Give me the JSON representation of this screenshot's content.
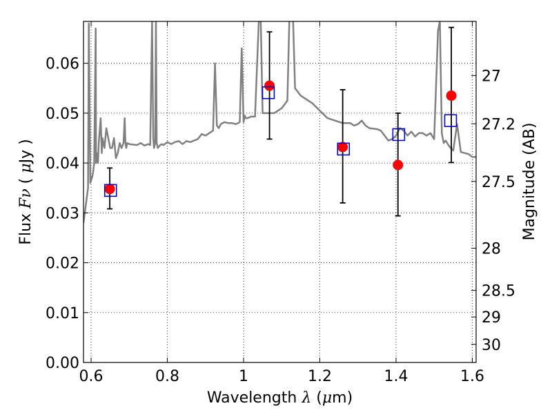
{
  "chart_data": {
    "type": "scatter",
    "title": "",
    "xlabel": "Wavelength  λ (μm)",
    "ylabel": "Flux  Fν  ( μJy )",
    "y2label": "Magnitude (AB)",
    "xlim": [
      0.58,
      1.61
    ],
    "ylim": [
      0.0,
      0.0684
    ],
    "grid": true,
    "xticks": [
      0.6,
      0.8,
      1.0,
      1.2,
      1.4,
      1.6
    ],
    "xtick_labels": [
      "0.6",
      "0.8",
      "1",
      "1.2",
      "1.4",
      "1.6"
    ],
    "yticks": [
      0.0,
      0.01,
      0.02,
      0.03,
      0.04,
      0.05,
      0.06
    ],
    "ytick_labels": [
      "0.00",
      "0.01",
      "0.02",
      "0.03",
      "0.04",
      "0.05",
      "0.06"
    ],
    "y2ticks": [
      27,
      27.2,
      27.5,
      28,
      28.5,
      29,
      30
    ],
    "y2tick_labels": [
      "27",
      "27.2",
      "27.5",
      "28",
      "28.5",
      "29",
      "30"
    ],
    "colors": {
      "spectrum": "#808080",
      "observed": "#ff0000",
      "model": "#0000cc",
      "errorbar": "#000000",
      "grid": "#000000"
    },
    "series": [
      {
        "kind": "line",
        "x": [
          0.58,
          0.592,
          0.594,
          0.598,
          0.602,
          0.605,
          0.608,
          0.612,
          0.613,
          0.615,
          0.618,
          0.62,
          0.625,
          0.628,
          0.63,
          0.635,
          0.64,
          0.645,
          0.65,
          0.655,
          0.66,
          0.665,
          0.67,
          0.675,
          0.68,
          0.685,
          0.688,
          0.69,
          0.692,
          0.695,
          0.7,
          0.71,
          0.72,
          0.73,
          0.74,
          0.75,
          0.755,
          0.76,
          0.763,
          0.765,
          0.768,
          0.77,
          0.772,
          0.775,
          0.78,
          0.785,
          0.79,
          0.8,
          0.81,
          0.82,
          0.83,
          0.84,
          0.85,
          0.86,
          0.87,
          0.88,
          0.89,
          0.9,
          0.91,
          0.92,
          0.925,
          0.93,
          0.935,
          0.94,
          0.95,
          0.96,
          0.97,
          0.98,
          0.99,
          0.995,
          1.0,
          1.003,
          1.006,
          1.01,
          1.02,
          1.03,
          1.04,
          1.045,
          1.05,
          1.06,
          1.08,
          1.1,
          1.115,
          1.12,
          1.125,
          1.13,
          1.135,
          1.15,
          1.18,
          1.2,
          1.22,
          1.24,
          1.26,
          1.28,
          1.29,
          1.3,
          1.31,
          1.32,
          1.33,
          1.35,
          1.36,
          1.37,
          1.38,
          1.39,
          1.4,
          1.41,
          1.42,
          1.43,
          1.44,
          1.45,
          1.46,
          1.47,
          1.48,
          1.49,
          1.5,
          1.51,
          1.515,
          1.52,
          1.525,
          1.53,
          1.54,
          1.55,
          1.56,
          1.57,
          1.58,
          1.59,
          1.6,
          1.61
        ],
        "y": [
          0.028,
          0.035,
          0.068,
          0.036,
          0.037,
          0.038,
          0.04,
          0.067,
          0.04,
          0.042,
          0.04,
          0.044,
          0.049,
          0.042,
          0.045,
          0.043,
          0.047,
          0.045,
          0.043,
          0.043,
          0.045,
          0.041,
          0.042,
          0.044,
          0.043,
          0.044,
          0.049,
          0.044,
          0.043,
          0.044,
          0.0438,
          0.0437,
          0.0436,
          0.044,
          0.0435,
          0.0438,
          0.0436,
          0.0685,
          0.045,
          0.043,
          0.044,
          0.0685,
          0.044,
          0.043,
          0.0435,
          0.0438,
          0.0436,
          0.0442,
          0.0438,
          0.0442,
          0.0444,
          0.0438,
          0.0444,
          0.0442,
          0.0445,
          0.0448,
          0.0458,
          0.0455,
          0.046,
          0.0465,
          0.06,
          0.0475,
          0.047,
          0.0478,
          0.0482,
          0.048,
          0.048,
          0.0478,
          0.0482,
          0.063,
          0.0482,
          0.0495,
          0.049,
          0.049,
          0.0493,
          0.0493,
          0.0685,
          0.0685,
          0.05,
          0.05,
          0.05,
          0.051,
          0.0525,
          0.0685,
          0.0685,
          0.0685,
          0.055,
          0.0535,
          0.052,
          0.0505,
          0.049,
          0.0485,
          0.048,
          0.048,
          0.0475,
          0.0478,
          0.0485,
          0.0475,
          0.047,
          0.0468,
          0.0465,
          0.0455,
          0.0445,
          0.0448,
          0.0455,
          0.047,
          0.0465,
          0.0455,
          0.0463,
          0.0453,
          0.046,
          0.046,
          0.0455,
          0.046,
          0.0448,
          0.0665,
          0.0685,
          0.046,
          0.044,
          0.0445,
          0.0433,
          0.0425,
          0.0478,
          0.0422,
          0.042,
          0.0418,
          0.0412,
          0.0412
        ],
        "name": ""
      },
      {
        "kind": "markers",
        "marker": "circle",
        "x": [
          0.649,
          1.068,
          1.26,
          1.405,
          1.545
        ],
        "y": [
          0.0348,
          0.0555,
          0.0432,
          0.0396,
          0.0535
        ],
        "yerr_low": [
          0.0308,
          0.0448,
          0.032,
          0.0294,
          0.0401
        ],
        "yerr_high": [
          0.039,
          0.0663,
          0.0547,
          0.05,
          0.0672
        ],
        "name": ""
      },
      {
        "kind": "markers",
        "marker": "square",
        "x": [
          0.651,
          1.065,
          1.262,
          1.407,
          1.543
        ],
        "y": [
          0.0345,
          0.0541,
          0.0428,
          0.0457,
          0.0485
        ],
        "name": ""
      }
    ]
  }
}
